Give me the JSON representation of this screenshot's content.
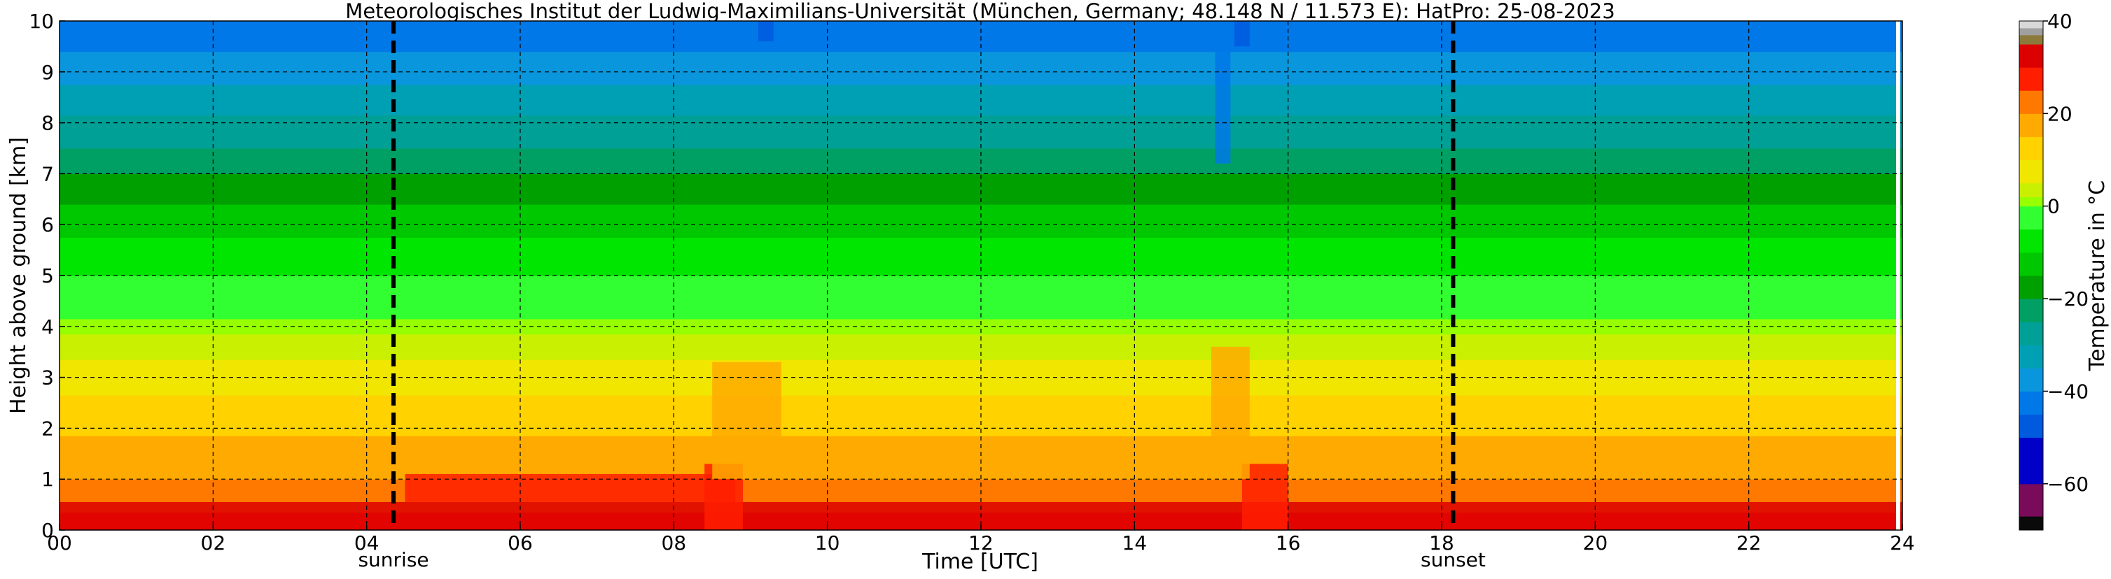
{
  "chart_data": {
    "type": "heatmap",
    "title": "Meteorologisches Institut der Ludwig-Maximilians-Universität (München, Germany; 48.148 N / 11.573 E):    HatPro: 25-08-2023",
    "xlabel": "Time [UTC]",
    "ylabel": "Height above ground [km]",
    "xlim": [
      0,
      24
    ],
    "ylim": [
      0,
      10
    ],
    "x_ticks": [
      0,
      2,
      4,
      6,
      8,
      10,
      12,
      14,
      16,
      18,
      20,
      22,
      24
    ],
    "x_tick_labels": [
      "00",
      "02",
      "04",
      "06",
      "08",
      "10",
      "12",
      "14",
      "16",
      "18",
      "20",
      "22",
      "24"
    ],
    "y_ticks": [
      0,
      1,
      2,
      3,
      4,
      5,
      6,
      7,
      8,
      9,
      10
    ],
    "y_tick_labels": [
      "0",
      "1",
      "2",
      "3",
      "4",
      "5",
      "6",
      "7",
      "8",
      "9",
      "10"
    ],
    "grid": true,
    "events": [
      {
        "label": "sunrise",
        "time": 4.35
      },
      {
        "label": "sunset",
        "time": 18.15
      }
    ],
    "colorbar": {
      "label": "Temperature in $^\\circ$C",
      "range": [
        -70,
        40
      ],
      "ticks": [
        -60,
        -40,
        -20,
        0,
        20,
        40
      ],
      "tick_labels": [
        "−60",
        "−40",
        "−20",
        "0",
        "20",
        "40"
      ],
      "bins": [
        {
          "from": -70,
          "to": -67,
          "color": "#0a0a0a"
        },
        {
          "from": -67,
          "to": -60,
          "color": "#7a0a5a"
        },
        {
          "from": -60,
          "to": -50,
          "color": "#0000c8"
        },
        {
          "from": -50,
          "to": -45,
          "color": "#005ade"
        },
        {
          "from": -45,
          "to": -40,
          "color": "#0078e8"
        },
        {
          "from": -40,
          "to": -35,
          "color": "#0a96dc"
        },
        {
          "from": -35,
          "to": -30,
          "color": "#00a0b4"
        },
        {
          "from": -30,
          "to": -25,
          "color": "#00a096"
        },
        {
          "from": -25,
          "to": -20,
          "color": "#00a064"
        },
        {
          "from": -20,
          "to": -15,
          "color": "#00a000"
        },
        {
          "from": -15,
          "to": -10,
          "color": "#00c800"
        },
        {
          "from": -10,
          "to": -5,
          "color": "#00e600"
        },
        {
          "from": -5,
          "to": 0,
          "color": "#32ff32"
        },
        {
          "from": 0,
          "to": 2,
          "color": "#96ff00"
        },
        {
          "from": 2,
          "to": 5,
          "color": "#c8f000"
        },
        {
          "from": 5,
          "to": 10,
          "color": "#f0e600"
        },
        {
          "from": 10,
          "to": 15,
          "color": "#ffd200"
        },
        {
          "from": 15,
          "to": 20,
          "color": "#ffaa00"
        },
        {
          "from": 20,
          "to": 25,
          "color": "#ff7800"
        },
        {
          "from": 25,
          "to": 30,
          "color": "#ff1e00"
        },
        {
          "from": 30,
          "to": 35,
          "color": "#dc0000"
        },
        {
          "from": 35,
          "to": 37,
          "color": "#8c7a3c"
        },
        {
          "from": 37,
          "to": 38.5,
          "color": "#a0a0a0"
        },
        {
          "from": 38.5,
          "to": 40,
          "color": "#d8d8d8"
        }
      ]
    },
    "temperature_profile": {
      "heights_km": [
        0,
        0.5,
        1,
        1.5,
        2,
        2.5,
        3,
        3.5,
        4,
        4.5,
        5,
        5.5,
        6,
        6.5,
        7,
        7.5,
        8,
        8.5,
        9,
        9.5,
        10
      ],
      "temperature_c": [
        27,
        24,
        20,
        17,
        14,
        11,
        7,
        4,
        1,
        -2,
        -5,
        -8,
        -12,
        -16,
        -20,
        -25,
        -29,
        -33,
        -37,
        -41,
        -45
      ]
    }
  }
}
